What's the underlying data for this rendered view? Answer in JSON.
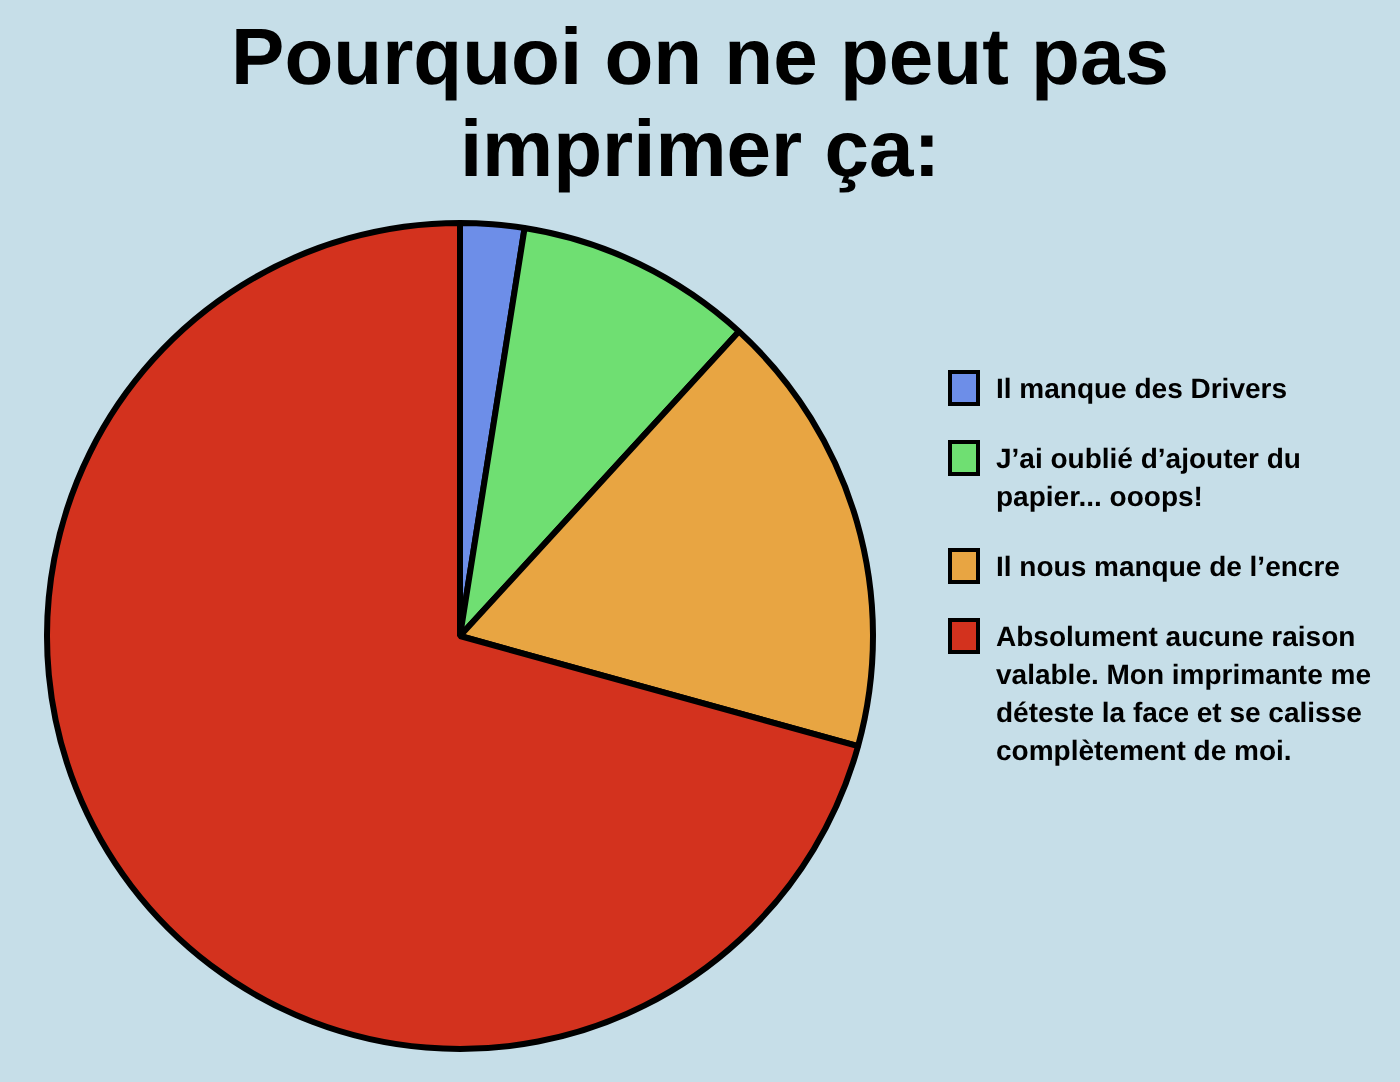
{
  "chart_data": {
    "type": "pie",
    "title": "Pourquoi on ne peut pas imprimer ça:",
    "categories": [
      "Il manque des Drivers",
      "J’ai oublié d’ajouter du papier... ooops!",
      "Il nous manque de l’encre",
      "Absolument aucune raison valable. Mon imprimante me déteste la face et se calisse complètement de moi."
    ],
    "values": [
      2.5,
      9.3,
      17.5,
      70.7
    ],
    "colors": [
      "#6d8ee8",
      "#6fdf72",
      "#e8a542",
      "#d3321e"
    ],
    "legend": "right"
  }
}
